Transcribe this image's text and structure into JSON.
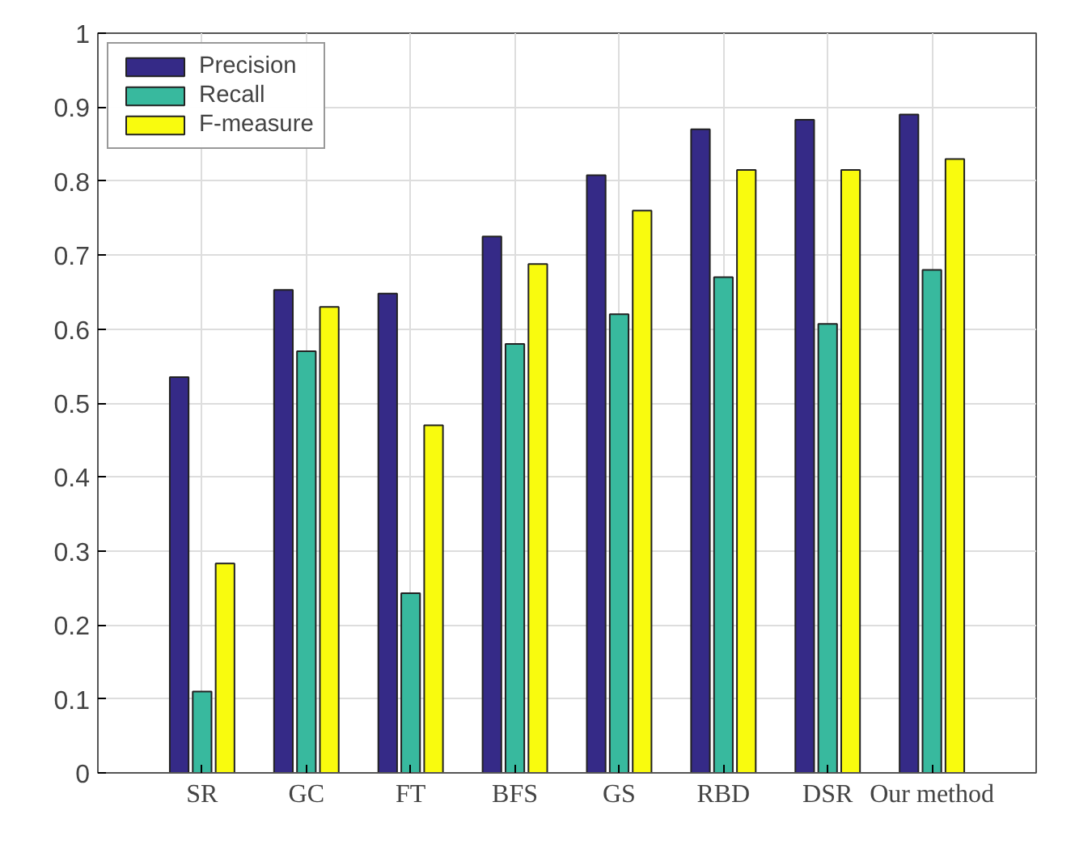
{
  "chart_data": {
    "type": "bar",
    "categories": [
      "SR",
      "GC",
      "FT",
      "BFS",
      "GS",
      "RBD",
      "DSR",
      "Our method"
    ],
    "series": [
      {
        "name": "Precision",
        "color": "#352a87",
        "values": [
          0.535,
          0.653,
          0.648,
          0.725,
          0.808,
          0.87,
          0.883,
          0.89
        ]
      },
      {
        "name": "Recall",
        "color": "#38b99e",
        "values": [
          0.11,
          0.57,
          0.243,
          0.58,
          0.62,
          0.67,
          0.607,
          0.68
        ]
      },
      {
        "name": "F-measure",
        "color": "#f9fb0e",
        "values": [
          0.283,
          0.63,
          0.47,
          0.688,
          0.76,
          0.815,
          0.815,
          0.83
        ]
      }
    ],
    "ylim": [
      0,
      1
    ],
    "yticks": [
      0,
      0.1,
      0.2,
      0.3,
      0.4,
      0.5,
      0.6,
      0.7,
      0.8,
      0.9,
      1
    ],
    "grid": true,
    "legend": "top left"
  }
}
